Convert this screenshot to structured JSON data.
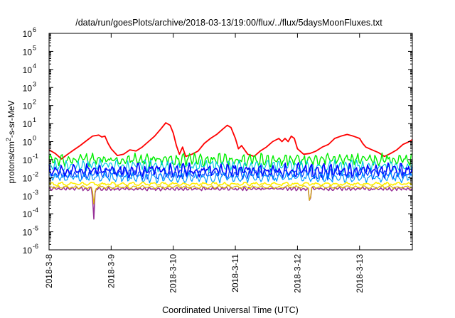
{
  "chart_data": {
    "type": "line",
    "title": "/data/run/goesPlots/archive/2018-03-13/19:00/flux/../flux/5daysMoonFluxes.txt",
    "xlabel": "Coordinated Universal Time (UTC)",
    "ylabel_parts": {
      "pre": "protons/cm",
      "sup": "2",
      "post": "-s-sr-MeV"
    },
    "x_range_days": [
      0,
      5.85
    ],
    "x_ticks": [
      {
        "label": "2018-3-8",
        "day": 0
      },
      {
        "label": "2018-3-9",
        "day": 1
      },
      {
        "label": "2018-3-10",
        "day": 2
      },
      {
        "label": "2018-3-11",
        "day": 3
      },
      {
        "label": "2018-3-12",
        "day": 4
      },
      {
        "label": "2018-3-13",
        "day": 5
      }
    ],
    "y_scale": "log",
    "y_range": [
      1e-06,
      1000000.0
    ],
    "y_ticks": [
      {
        "base": "10",
        "exp": "-6",
        "value": 1e-06
      },
      {
        "base": "10",
        "exp": "-5",
        "value": 1e-05
      },
      {
        "base": "10",
        "exp": "-4",
        "value": 0.0001
      },
      {
        "base": "10",
        "exp": "-3",
        "value": 0.001
      },
      {
        "base": "10",
        "exp": "-2",
        "value": 0.01
      },
      {
        "base": "10",
        "exp": "-1",
        "value": 0.1
      },
      {
        "base": "10",
        "exp": "0",
        "value": 1
      },
      {
        "base": "10",
        "exp": "1",
        "value": 10.0
      },
      {
        "base": "10",
        "exp": "2",
        "value": 100.0
      },
      {
        "base": "10",
        "exp": "3",
        "value": 1000.0
      },
      {
        "base": "10",
        "exp": "4",
        "value": 10000.0
      },
      {
        "base": "10",
        "exp": "5",
        "value": 100000.0
      },
      {
        "base": "10",
        "exp": "6",
        "value": 1000000.0
      }
    ],
    "grid": false,
    "legend": "none",
    "series": [
      {
        "color": "#ff0000",
        "width": 1.8,
        "points": [
          [
            0,
            0.35
          ],
          [
            0.1,
            0.22
          ],
          [
            0.2,
            0.11
          ],
          [
            0.3,
            0.2
          ],
          [
            0.4,
            0.35
          ],
          [
            0.5,
            0.6
          ],
          [
            0.6,
            1.1
          ],
          [
            0.7,
            2.0
          ],
          [
            0.8,
            2.3
          ],
          [
            0.85,
            1.8
          ],
          [
            0.9,
            2.0
          ],
          [
            0.95,
            0.8
          ],
          [
            1.0,
            0.4
          ],
          [
            1.1,
            0.17
          ],
          [
            1.2,
            0.2
          ],
          [
            1.3,
            0.35
          ],
          [
            1.4,
            0.3
          ],
          [
            1.5,
            0.5
          ],
          [
            1.6,
            1.0
          ],
          [
            1.7,
            2.0
          ],
          [
            1.8,
            5
          ],
          [
            1.88,
            11
          ],
          [
            1.95,
            8
          ],
          [
            2.0,
            3
          ],
          [
            2.05,
            0.6
          ],
          [
            2.1,
            0.2
          ],
          [
            2.15,
            0.5
          ],
          [
            2.2,
            0.15
          ],
          [
            2.3,
            0.2
          ],
          [
            2.4,
            0.3
          ],
          [
            2.5,
            0.8
          ],
          [
            2.6,
            1.5
          ],
          [
            2.7,
            2.5
          ],
          [
            2.8,
            5
          ],
          [
            2.87,
            8
          ],
          [
            2.93,
            6
          ],
          [
            3.0,
            1.5
          ],
          [
            3.05,
            0.4
          ],
          [
            3.1,
            0.6
          ],
          [
            3.2,
            0.2
          ],
          [
            3.3,
            0.15
          ],
          [
            3.4,
            0.3
          ],
          [
            3.5,
            0.5
          ],
          [
            3.6,
            1.0
          ],
          [
            3.7,
            1.5
          ],
          [
            3.75,
            1.0
          ],
          [
            3.8,
            1.5
          ],
          [
            3.85,
            1.0
          ],
          [
            3.9,
            2.0
          ],
          [
            3.95,
            1.5
          ],
          [
            4.0,
            0.4
          ],
          [
            4.1,
            0.2
          ],
          [
            4.2,
            0.22
          ],
          [
            4.3,
            0.3
          ],
          [
            4.4,
            0.5
          ],
          [
            4.5,
            0.7
          ],
          [
            4.6,
            1.5
          ],
          [
            4.7,
            2.0
          ],
          [
            4.8,
            2.5
          ],
          [
            4.9,
            2.0
          ],
          [
            5.0,
            1.5
          ],
          [
            5.05,
            0.8
          ],
          [
            5.1,
            0.5
          ],
          [
            5.2,
            0.35
          ],
          [
            5.3,
            0.25
          ],
          [
            5.4,
            0.15
          ],
          [
            5.5,
            0.22
          ],
          [
            5.6,
            0.35
          ],
          [
            5.7,
            0.7
          ],
          [
            5.8,
            1.0
          ],
          [
            5.85,
            1.3
          ]
        ]
      },
      {
        "color": "#00ee00",
        "width": 1.4,
        "base": 0.1,
        "amp": 0.22,
        "freq": 10.3,
        "phase": 0.3,
        "dips": []
      },
      {
        "color": "#00ccdd",
        "width": 1.2,
        "base": 0.045,
        "amp": 0.2,
        "freq": 11.1,
        "phase": 1.1,
        "dips": []
      },
      {
        "color": "#0000ff",
        "width": 1.6,
        "base": 0.025,
        "amp": 0.24,
        "freq": 9.7,
        "phase": 2.0,
        "dips": []
      },
      {
        "color": "#0044ff",
        "width": 1.2,
        "base": 0.016,
        "amp": 0.18,
        "freq": 12.4,
        "phase": 0.7,
        "dips": []
      },
      {
        "color": "#0099ff",
        "width": 1.2,
        "base": 0.01,
        "amp": 0.16,
        "freq": 8.9,
        "phase": 1.7,
        "dips": []
      },
      {
        "color": "#ffee00",
        "width": 1.6,
        "base": 0.0045,
        "amp": 0.06,
        "freq": 6.1,
        "phase": 0.2,
        "dips": []
      },
      {
        "color": "#993399",
        "width": 1.6,
        "base": 0.0024,
        "amp": 0.06,
        "freq": 13.7,
        "phase": 0.9,
        "dips": [
          {
            "x": 0.72,
            "v": 4e-05
          },
          {
            "x": 4.2,
            "v": 0.0003
          }
        ]
      },
      {
        "color": "#ddbb00",
        "width": 1.2,
        "base": 0.003,
        "amp": 0.05,
        "freq": 7.3,
        "phase": 1.4,
        "dips": [
          {
            "x": 0.72,
            "v": 0.0003
          },
          {
            "x": 4.2,
            "v": 0.0003
          }
        ]
      }
    ]
  }
}
